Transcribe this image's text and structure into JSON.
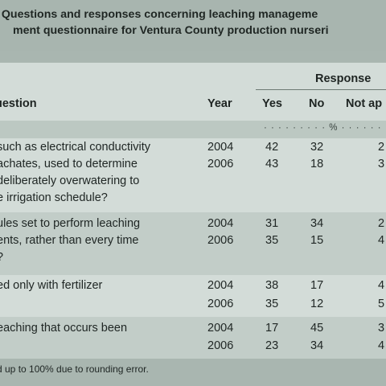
{
  "table": {
    "title_line1": ". Questions and responses concerning leaching manageme",
    "title_line2": "ment questionnaire for Ventura County production nurseri",
    "response_label": "Response",
    "headers": {
      "question": "uestion",
      "year": "Year",
      "yes": "Yes",
      "no": "No",
      "not_applicable": "Not ap"
    },
    "unit": "· · · · · · · · · % · · · · · ·",
    "rows": [
      {
        "question_lines": [
          "such as electrical conductivity",
          "achates, used to determine",
          "deliberately overwatering to",
          "e irrigation schedule?"
        ],
        "entries": [
          {
            "year": "2004",
            "yes": "42",
            "no": "32",
            "na": "2"
          },
          {
            "year": "2006",
            "yes": "43",
            "no": "18",
            "na": "3"
          }
        ]
      },
      {
        "question_lines": [
          "ules set to perform leaching",
          "ents, rather than every time",
          "?"
        ],
        "entries": [
          {
            "year": "2004",
            "yes": "31",
            "no": "34",
            "na": "2"
          },
          {
            "year": "2006",
            "yes": "35",
            "no": "15",
            "na": "4"
          }
        ]
      },
      {
        "question_lines": [
          "ed only with fertilizer"
        ],
        "entries": [
          {
            "year": "2004",
            "yes": "38",
            "no": "17",
            "na": "4"
          },
          {
            "year": "2006",
            "yes": "35",
            "no": "12",
            "na": "5"
          }
        ]
      },
      {
        "question_lines": [
          "eaching that occurs been"
        ],
        "entries": [
          {
            "year": "2004",
            "yes": "17",
            "no": "45",
            "na": "3"
          },
          {
            "year": "2006",
            "yes": "23",
            "no": "34",
            "na": "4"
          }
        ]
      }
    ],
    "footnote": "d up to 100% due to rounding error."
  }
}
